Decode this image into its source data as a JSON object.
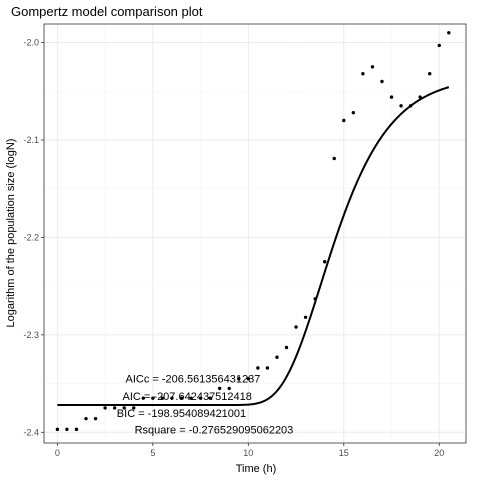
{
  "chart_data": {
    "type": "scatter",
    "title": "Gompertz model comparison plot",
    "xlabel": "Time (h)",
    "ylabel": "Logarithm of the population size (logN)",
    "xlim": [
      -0.7,
      21.4
    ],
    "ylim": [
      -2.411,
      -1.981
    ],
    "x_ticks": [
      0,
      5,
      10,
      15,
      20
    ],
    "y_ticks": [
      -2.4,
      -2.3,
      -2.2,
      -2.1,
      -2.0
    ],
    "x_tick_labels": [
      "0",
      "5",
      "10",
      "15",
      "20"
    ],
    "y_tick_labels": [
      "-2.4",
      "-2.3",
      "-2.2",
      "-2.1",
      "-2.0"
    ],
    "grid": true,
    "legend": "none",
    "series": [
      {
        "type": "scatter",
        "x": [
          0,
          0.5,
          1,
          1.5,
          2,
          2.5,
          3,
          3.5,
          4,
          4.5,
          5,
          5.5,
          6,
          6.5,
          7,
          7.5,
          8,
          8.5,
          9,
          9.5,
          10,
          10.5,
          11,
          11.5,
          12,
          12.5,
          13,
          13.5,
          14,
          14.5,
          15,
          15.5,
          16,
          16.5,
          17,
          17.5,
          18,
          18.5,
          19,
          19.5,
          20,
          20.5
        ],
        "y": [
          -2.397,
          -2.397,
          -2.397,
          -2.386,
          -2.386,
          -2.375,
          -2.375,
          -2.375,
          -2.375,
          -2.365,
          -2.365,
          -2.365,
          -2.365,
          -2.365,
          -2.365,
          -2.365,
          -2.365,
          -2.355,
          -2.355,
          -2.345,
          -2.345,
          -2.334,
          -2.334,
          -2.323,
          -2.313,
          -2.292,
          -2.282,
          -2.263,
          -2.225,
          -2.119,
          -2.08,
          -2.072,
          -2.032,
          -2.025,
          -2.04,
          -2.056,
          -2.065,
          -2.065,
          -2.056,
          -2.032,
          -2.003,
          -1.99
        ]
      },
      {
        "type": "line",
        "model": "gompertz",
        "params": {
          "lower": -2.372,
          "upper": -2.034,
          "mu": 0.062,
          "lag": 11.8
        },
        "x_range": [
          0,
          20.5
        ]
      }
    ],
    "annotations": [
      {
        "text": "AICc = -206.561356431237",
        "x": 7.1,
        "y": -2.345
      },
      {
        "text": "AIC = -207.642437512418",
        "x": 6.8,
        "y": -2.363
      },
      {
        "text": "BIC = -198.954089421001",
        "x": 6.5,
        "y": -2.38
      },
      {
        "text": "Rsquare = -0.276529095062203",
        "x": 8.2,
        "y": -2.397
      }
    ]
  }
}
